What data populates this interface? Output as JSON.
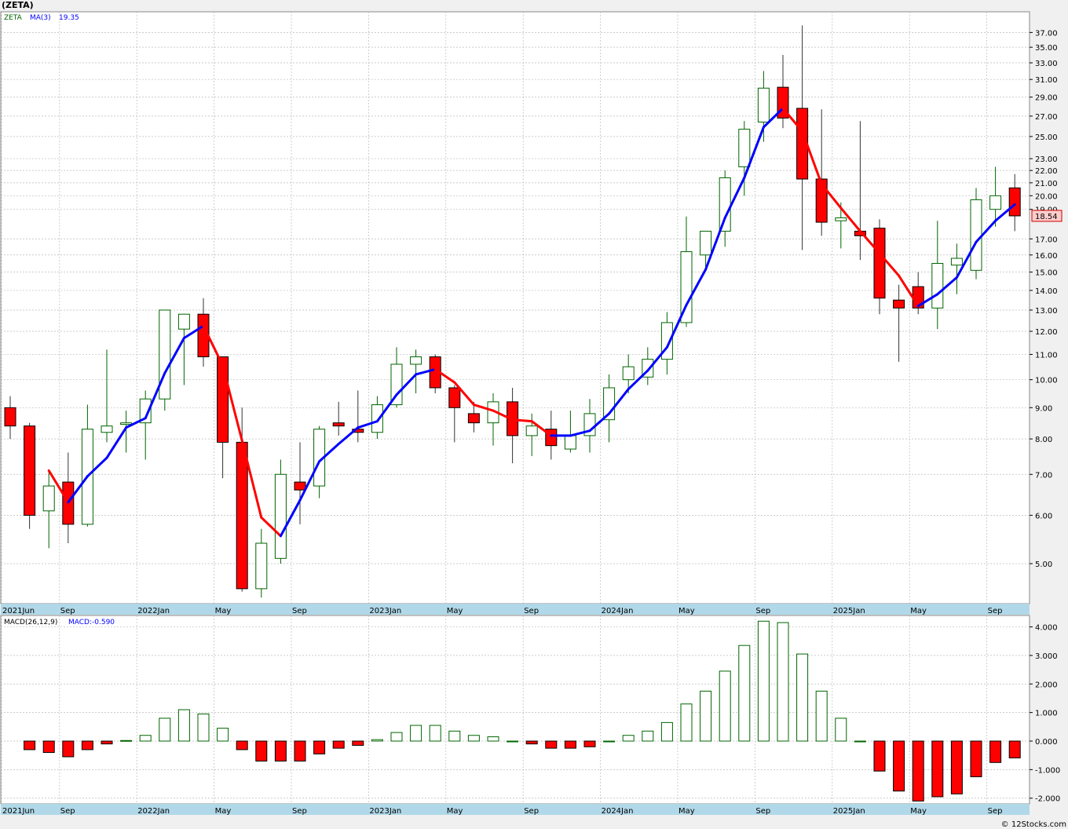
{
  "header": {
    "symbol": "(ZETA)"
  },
  "price_legend": {
    "ticker": "ZETA",
    "ma_label": "MA(3)",
    "ma_value": "19.35"
  },
  "macd_legend": {
    "label": "MACD(26,12,9)",
    "value": "MACD:-0.590"
  },
  "last_price": "18.54",
  "footer": {
    "copyright": "© 12Stocks.com"
  },
  "colors": {
    "up": "#006400",
    "down": "#ff0000",
    "ma_up": "#0000ff",
    "ma_down": "#ff0000",
    "background": "#ffffff",
    "grid": "#bbbbbb",
    "axis_bar": "#b0d8e8"
  },
  "chart_data": [
    {
      "type": "candlestick",
      "scale": "log",
      "title": "(ZETA)",
      "ylim": [
        4.3,
        40
      ],
      "y_ticks": [
        5.0,
        6.0,
        7.0,
        8.0,
        9.0,
        10.0,
        11.0,
        12.0,
        13.0,
        14.0,
        15.0,
        16.0,
        17.0,
        19.0,
        20.0,
        21.0,
        22.0,
        23.0,
        25.0,
        27.0,
        29.0,
        31.0,
        33.0,
        35.0,
        37.0
      ],
      "x_labels": [
        {
          "index": 0,
          "label": "2021Jun"
        },
        {
          "index": 3,
          "label": "Sep"
        },
        {
          "index": 7,
          "label": "2022Jan"
        },
        {
          "index": 11,
          "label": "May"
        },
        {
          "index": 15,
          "label": "Sep"
        },
        {
          "index": 19,
          "label": "2023Jan"
        },
        {
          "index": 23,
          "label": "May"
        },
        {
          "index": 27,
          "label": "Sep"
        },
        {
          "index": 31,
          "label": "2024Jan"
        },
        {
          "index": 35,
          "label": "May"
        },
        {
          "index": 39,
          "label": "Sep"
        },
        {
          "index": 43,
          "label": "2025Jan"
        },
        {
          "index": 47,
          "label": "May"
        },
        {
          "index": 51,
          "label": "Sep"
        }
      ],
      "candles": [
        {
          "o": 9.0,
          "h": 9.4,
          "l": 8.0,
          "c": 8.4
        },
        {
          "o": 8.4,
          "h": 8.5,
          "l": 5.7,
          "c": 6.0
        },
        {
          "o": 6.1,
          "h": 7.1,
          "l": 5.3,
          "c": 6.7
        },
        {
          "o": 6.8,
          "h": 7.6,
          "l": 5.4,
          "c": 5.8
        },
        {
          "o": 5.8,
          "h": 9.1,
          "l": 5.75,
          "c": 8.3
        },
        {
          "o": 8.2,
          "h": 11.2,
          "l": 7.9,
          "c": 8.4
        },
        {
          "o": 8.45,
          "h": 8.9,
          "l": 7.6,
          "c": 8.5
        },
        {
          "o": 8.5,
          "h": 9.6,
          "l": 7.4,
          "c": 9.3
        },
        {
          "o": 9.3,
          "h": 13.0,
          "l": 8.9,
          "c": 13.0
        },
        {
          "o": 12.1,
          "h": 12.8,
          "l": 9.8,
          "c": 12.8
        },
        {
          "o": 12.8,
          "h": 13.6,
          "l": 10.5,
          "c": 10.9
        },
        {
          "o": 10.9,
          "h": 10.9,
          "l": 6.9,
          "c": 7.9
        },
        {
          "o": 7.9,
          "h": 9.0,
          "l": 4.5,
          "c": 4.55
        },
        {
          "o": 4.55,
          "h": 5.7,
          "l": 4.4,
          "c": 5.4
        },
        {
          "o": 5.1,
          "h": 7.4,
          "l": 5.0,
          "c": 7.0
        },
        {
          "o": 6.8,
          "h": 7.9,
          "l": 5.8,
          "c": 6.6
        },
        {
          "o": 6.7,
          "h": 8.4,
          "l": 6.4,
          "c": 8.3
        },
        {
          "o": 8.5,
          "h": 9.2,
          "l": 8.1,
          "c": 8.4
        },
        {
          "o": 8.3,
          "h": 9.6,
          "l": 7.9,
          "c": 8.2
        },
        {
          "o": 8.2,
          "h": 9.4,
          "l": 8.0,
          "c": 9.1
        },
        {
          "o": 9.1,
          "h": 11.3,
          "l": 9.0,
          "c": 10.6
        },
        {
          "o": 10.6,
          "h": 11.2,
          "l": 9.5,
          "c": 10.9
        },
        {
          "o": 10.9,
          "h": 11.0,
          "l": 9.5,
          "c": 9.7
        },
        {
          "o": 9.7,
          "h": 9.8,
          "l": 7.9,
          "c": 9.0
        },
        {
          "o": 8.8,
          "h": 9.2,
          "l": 8.2,
          "c": 8.5
        },
        {
          "o": 8.5,
          "h": 9.5,
          "l": 7.8,
          "c": 9.2
        },
        {
          "o": 9.2,
          "h": 9.7,
          "l": 7.3,
          "c": 8.1
        },
        {
          "o": 8.1,
          "h": 8.8,
          "l": 7.5,
          "c": 8.4
        },
        {
          "o": 8.3,
          "h": 8.9,
          "l": 7.4,
          "c": 7.8
        },
        {
          "o": 7.7,
          "h": 8.9,
          "l": 7.6,
          "c": 8.1
        },
        {
          "o": 8.1,
          "h": 9.3,
          "l": 7.6,
          "c": 8.8
        },
        {
          "o": 8.6,
          "h": 10.2,
          "l": 7.9,
          "c": 9.7
        },
        {
          "o": 10.0,
          "h": 11.0,
          "l": 9.5,
          "c": 10.5
        },
        {
          "o": 10.1,
          "h": 11.3,
          "l": 9.8,
          "c": 10.8
        },
        {
          "o": 10.8,
          "h": 12.9,
          "l": 10.2,
          "c": 12.4
        },
        {
          "o": 12.4,
          "h": 18.5,
          "l": 12.2,
          "c": 16.2
        },
        {
          "o": 16.0,
          "h": 17.5,
          "l": 15.2,
          "c": 17.5
        },
        {
          "o": 17.5,
          "h": 22.0,
          "l": 16.5,
          "c": 21.4
        },
        {
          "o": 22.3,
          "h": 26.5,
          "l": 20.0,
          "c": 25.7
        },
        {
          "o": 26.4,
          "h": 32.0,
          "l": 24.5,
          "c": 30.0
        },
        {
          "o": 30.1,
          "h": 34.0,
          "l": 25.8,
          "c": 26.8
        },
        {
          "o": 27.8,
          "h": 38.0,
          "l": 16.3,
          "c": 21.3
        },
        {
          "o": 21.3,
          "h": 27.7,
          "l": 17.2,
          "c": 18.1
        },
        {
          "o": 18.2,
          "h": 19.5,
          "l": 16.4,
          "c": 18.4
        },
        {
          "o": 17.5,
          "h": 26.5,
          "l": 15.7,
          "c": 17.2
        },
        {
          "o": 17.7,
          "h": 18.3,
          "l": 12.8,
          "c": 13.6
        },
        {
          "o": 13.5,
          "h": 14.3,
          "l": 10.7,
          "c": 13.1
        },
        {
          "o": 14.2,
          "h": 15.0,
          "l": 12.8,
          "c": 13.1
        },
        {
          "o": 13.1,
          "h": 18.2,
          "l": 12.1,
          "c": 15.5
        },
        {
          "o": 15.4,
          "h": 16.7,
          "l": 13.8,
          "c": 15.8
        },
        {
          "o": 15.1,
          "h": 20.6,
          "l": 14.6,
          "c": 19.7
        },
        {
          "o": 19.0,
          "h": 22.3,
          "l": 17.8,
          "c": 20.0
        },
        {
          "o": 20.6,
          "h": 21.7,
          "l": 17.5,
          "c": 18.54
        }
      ],
      "ma3": {
        "name": "MA(3)",
        "start_index": 2,
        "values": [
          7.1,
          6.3,
          6.95,
          7.45,
          8.35,
          8.65,
          10.25,
          11.7,
          12.25,
          10.55,
          7.95,
          5.95,
          5.55,
          6.35,
          7.35,
          7.85,
          8.35,
          8.55,
          9.45,
          10.2,
          10.4,
          9.9,
          9.1,
          8.9,
          8.6,
          8.55,
          8.1,
          8.1,
          8.25,
          8.8,
          9.65,
          10.35,
          11.3,
          13.25,
          15.15,
          18.4,
          21.4,
          25.9,
          27.8,
          25.5,
          20.9,
          19.1,
          17.5,
          16.1,
          14.8,
          13.2,
          13.8,
          14.7,
          16.8,
          18.2,
          19.35
        ]
      }
    },
    {
      "type": "bar",
      "title": "MACD(26,12,9)",
      "ylim": [
        -2.2,
        4.4
      ],
      "y_ticks": [
        -2.0,
        -1.0,
        0.0,
        1.0,
        2.0,
        3.0,
        4.0
      ],
      "values": [
        null,
        -0.3,
        -0.4,
        -0.55,
        -0.3,
        -0.1,
        0.02,
        0.2,
        0.8,
        1.1,
        0.95,
        0.45,
        -0.3,
        -0.7,
        -0.7,
        -0.7,
        -0.45,
        -0.25,
        -0.15,
        0.05,
        0.3,
        0.55,
        0.55,
        0.35,
        0.2,
        0.15,
        0.0,
        -0.1,
        -0.25,
        -0.25,
        -0.2,
        0.0,
        0.2,
        0.35,
        0.65,
        1.3,
        1.75,
        2.45,
        3.35,
        4.2,
        4.15,
        3.05,
        1.75,
        0.8,
        0.0,
        -1.05,
        -1.75,
        -2.1,
        -1.95,
        -1.85,
        -1.25,
        -0.75,
        -0.59
      ],
      "x_labels": [
        {
          "index": 0,
          "label": "2021Jun"
        },
        {
          "index": 3,
          "label": "Sep"
        },
        {
          "index": 7,
          "label": "2022Jan"
        },
        {
          "index": 11,
          "label": "May"
        },
        {
          "index": 15,
          "label": "Sep"
        },
        {
          "index": 19,
          "label": "2023Jan"
        },
        {
          "index": 23,
          "label": "May"
        },
        {
          "index": 27,
          "label": "Sep"
        },
        {
          "index": 31,
          "label": "2024Jan"
        },
        {
          "index": 35,
          "label": "May"
        },
        {
          "index": 39,
          "label": "Sep"
        },
        {
          "index": 43,
          "label": "2025Jan"
        },
        {
          "index": 47,
          "label": "May"
        },
        {
          "index": 51,
          "label": "Sep"
        }
      ]
    }
  ]
}
